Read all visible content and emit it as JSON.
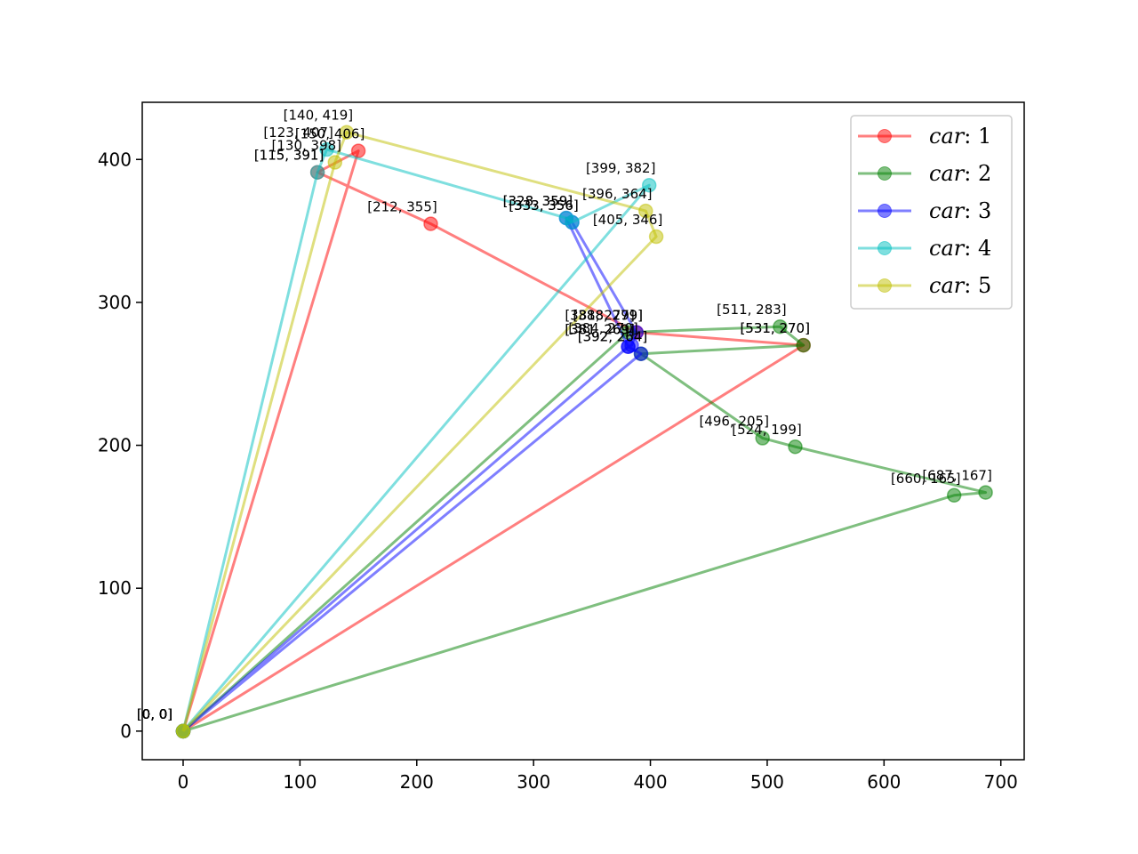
{
  "chart_data": {
    "type": "line",
    "title": "",
    "xlabel": "",
    "ylabel": "",
    "xlim": [
      -35,
      720
    ],
    "ylim": [
      -20,
      440
    ],
    "xticks": [
      0,
      100,
      200,
      300,
      400,
      500,
      600,
      700
    ],
    "yticks": [
      0,
      100,
      200,
      300,
      400
    ],
    "grid": false,
    "legend": "top-right",
    "series": [
      {
        "name": "car : 1",
        "legend_prefix": "car",
        "legend_suffix": ": 1",
        "color": "#ff0000",
        "points": [
          [
            0,
            0
          ],
          [
            531,
            270
          ],
          [
            388,
            279
          ],
          [
            212,
            355
          ],
          [
            115,
            391
          ],
          [
            150,
            406
          ],
          [
            0,
            0
          ]
        ],
        "labels": [
          "[0, 0]",
          "[531, 270]",
          "[388, 279]",
          "[212, 355]",
          "[115, 391]",
          "[150, 406]",
          "[0, 0]"
        ]
      },
      {
        "name": "car : 2",
        "legend_prefix": "car",
        "legend_suffix": ": 2",
        "color": "#008000",
        "points": [
          [
            0,
            0
          ],
          [
            381,
            279
          ],
          [
            511,
            283
          ],
          [
            531,
            270
          ],
          [
            392,
            264
          ],
          [
            496,
            205
          ],
          [
            524,
            199
          ],
          [
            687,
            167
          ],
          [
            660,
            165
          ],
          [
            0,
            0
          ]
        ],
        "labels": [
          "[0, 0]",
          "[381, 279]",
          "[511, 283]",
          "[531, 270]",
          "[392, 264]",
          "[496, 205]",
          "[524, 199]",
          "[687, 167]",
          "[660, 165]",
          "[0, 0]"
        ]
      },
      {
        "name": "car : 3",
        "legend_prefix": "car",
        "legend_suffix": ": 3",
        "color": "#0000ff",
        "points": [
          [
            0,
            0
          ],
          [
            392,
            264
          ],
          [
            381,
            269
          ],
          [
            384,
            270
          ],
          [
            388,
            279
          ],
          [
            333,
            356
          ],
          [
            328,
            359
          ],
          [
            381,
            269
          ],
          [
            0,
            0
          ]
        ],
        "labels": [
          "[0, 0]",
          "[392, 264]",
          "[381, 269]",
          "[384, 270]",
          "[388, 279]",
          "[333, 356]",
          "[328, 359]",
          "[381, 269]",
          "[0, 0]"
        ]
      },
      {
        "name": "car : 4",
        "legend_prefix": "car",
        "legend_suffix": ": 4",
        "color": "#00bfbf",
        "points": [
          [
            0,
            0
          ],
          [
            115,
            391
          ],
          [
            123,
            407
          ],
          [
            328,
            359
          ],
          [
            333,
            356
          ],
          [
            399,
            382
          ],
          [
            0,
            0
          ]
        ],
        "labels": [
          "[0, 0]",
          "[115, 391]",
          "[123, 407]",
          "[328, 359]",
          "[333, 356]",
          "[399, 382]",
          "[0, 0]"
        ]
      },
      {
        "name": "car : 5",
        "legend_prefix": "car",
        "legend_suffix": ": 5",
        "color": "#bfbf00",
        "points": [
          [
            0,
            0
          ],
          [
            130,
            398
          ],
          [
            140,
            419
          ],
          [
            396,
            364
          ],
          [
            405,
            346
          ],
          [
            0,
            0
          ]
        ],
        "labels": [
          "[0, 0]",
          "[130, 398]",
          "[140, 419]",
          "[396, 364]",
          "[405, 346]",
          "[0, 0]"
        ]
      }
    ]
  }
}
